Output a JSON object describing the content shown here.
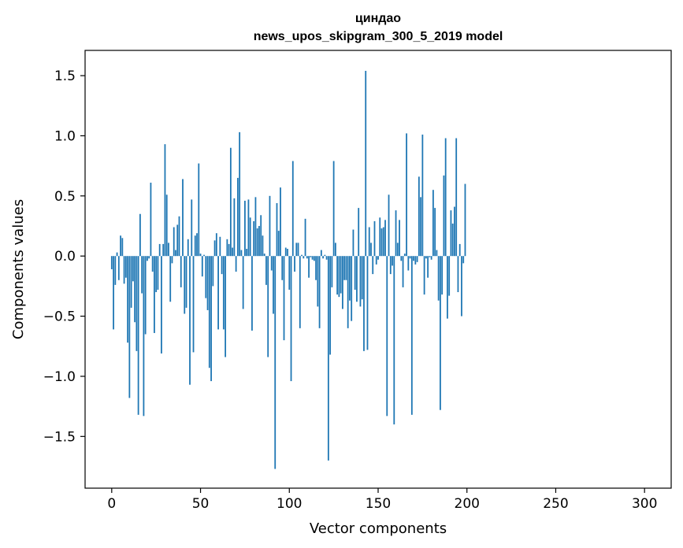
{
  "chart_data": {
    "type": "bar",
    "title_line1": "циндао",
    "title_line2": "news_upos_skipgram_300_5_2019 model",
    "xlabel": "Vector components",
    "ylabel": "Components values",
    "xlim": [
      -15,
      315
    ],
    "ylim": [
      -1.93,
      1.71
    ],
    "x_ticks": [
      0,
      50,
      100,
      150,
      200,
      250,
      300
    ],
    "x_tick_labels": [
      "0",
      "50",
      "100",
      "150",
      "200",
      "250",
      "300"
    ],
    "y_ticks": [
      -1.5,
      -1.0,
      -0.5,
      0.0,
      0.5,
      1.0,
      1.5
    ],
    "y_tick_labels": [
      "−1.5",
      "−1.0",
      "−0.5",
      "0.0",
      "0.5",
      "1.0",
      "1.5"
    ],
    "bar_color": "#1f77b4",
    "values": [
      -0.11,
      -0.61,
      -0.24,
      0.03,
      -0.2,
      0.17,
      0.15,
      -0.23,
      -0.18,
      -0.72,
      -1.18,
      -0.43,
      -0.21,
      -0.55,
      -0.79,
      -1.32,
      0.35,
      -0.31,
      -1.33,
      -0.65,
      -0.04,
      -0.02,
      0.61,
      -0.13,
      -0.64,
      -0.3,
      -0.28,
      0.1,
      -0.81,
      0.1,
      0.93,
      0.51,
      0.11,
      -0.38,
      -0.06,
      0.24,
      0.05,
      0.26,
      0.33,
      -0.26,
      0.64,
      -0.48,
      -0.43,
      0.14,
      -1.07,
      0.47,
      -0.8,
      0.17,
      0.19,
      0.77,
      0.02,
      -0.17,
      0.01,
      -0.35,
      -0.45,
      -0.93,
      -1.04,
      -0.25,
      0.13,
      0.19,
      -0.61,
      0.16,
      -0.15,
      -0.61,
      -0.84,
      0.14,
      0.1,
      0.9,
      0.07,
      0.48,
      -0.13,
      0.65,
      1.03,
      0.05,
      -0.44,
      0.46,
      0.06,
      0.47,
      0.32,
      -0.62,
      0.29,
      0.49,
      0.23,
      0.25,
      0.34,
      0.17,
      0.02,
      -0.24,
      -0.84,
      0.5,
      -0.12,
      -0.48,
      -1.77,
      0.44,
      0.21,
      0.57,
      -0.2,
      -0.7,
      0.07,
      0.06,
      -0.28,
      -1.04,
      0.79,
      -0.13,
      0.11,
      0.11,
      -0.6,
      0.01,
      -0.02,
      0.31,
      -0.02,
      -0.18,
      -0.01,
      -0.03,
      -0.04,
      -0.2,
      -0.42,
      -0.6,
      0.05,
      -0.02,
      0.01,
      -0.03,
      -1.7,
      -0.82,
      -0.26,
      0.79,
      0.11,
      -0.32,
      -0.34,
      -0.31,
      -0.44,
      -0.2,
      -0.2,
      -0.6,
      -0.37,
      -0.54,
      0.22,
      -0.28,
      -0.38,
      0.4,
      -0.42,
      -0.36,
      -0.79,
      1.54,
      -0.78,
      0.24,
      0.11,
      -0.15,
      0.29,
      -0.07,
      -0.03,
      0.32,
      0.23,
      0.24,
      0.3,
      -1.33,
      0.51,
      -0.15,
      -0.08,
      -1.4,
      0.38,
      0.11,
      0.3,
      -0.04,
      -0.26,
      0.02,
      1.02,
      -0.12,
      -0.02,
      -1.32,
      -0.04,
      -0.07,
      -0.05,
      0.66,
      0.49,
      1.01,
      -0.32,
      -0.02,
      -0.18,
      -0.01,
      -0.03,
      0.55,
      0.4,
      0.05,
      -0.37,
      -1.28,
      -0.32,
      0.67,
      0.98,
      -0.52,
      -0.33,
      0.38,
      0.27,
      0.41,
      0.98,
      -0.3,
      0.1,
      -0.5,
      -0.06,
      0.6
    ]
  }
}
